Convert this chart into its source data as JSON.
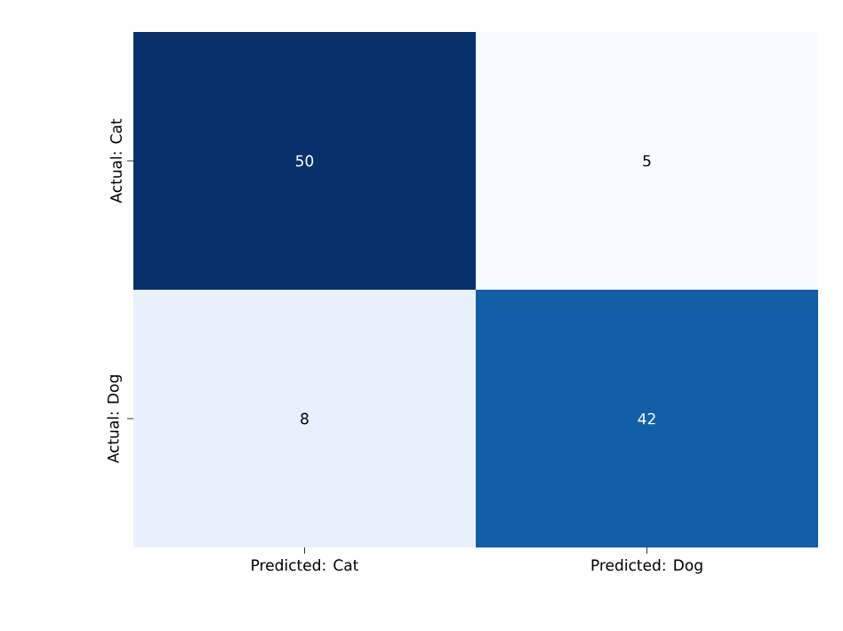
{
  "chart_data": {
    "type": "heatmap",
    "categories": [
      "Predicted: Cat",
      "Predicted: Dog"
    ],
    "y_categories": [
      "Actual: Cat",
      "Actual: Dog"
    ],
    "cells": [
      [
        50,
        5
      ],
      [
        8,
        42
      ]
    ],
    "colors": [
      [
        "#08306b",
        "#f7fbff"
      ],
      [
        "#e8f1fb",
        "#135fa7"
      ]
    ],
    "data_labels": true
  }
}
